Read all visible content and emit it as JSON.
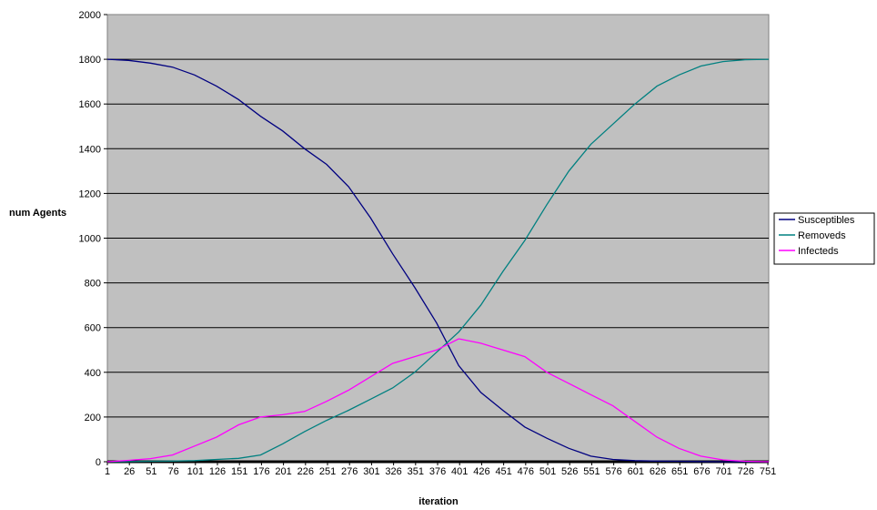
{
  "chart_data": {
    "type": "line",
    "title": "",
    "xlabel": "iteration",
    "ylabel": "num Agents",
    "ylim": [
      0,
      2000
    ],
    "xlim": [
      1,
      752
    ],
    "y_ticks": [
      0,
      200,
      400,
      600,
      800,
      1000,
      1200,
      1400,
      1600,
      1800,
      2000
    ],
    "x_tick_labels": [
      "1",
      "26",
      "51",
      "76",
      "101",
      "126",
      "151",
      "176",
      "201",
      "226",
      "251",
      "276",
      "301",
      "326",
      "351",
      "376",
      "401",
      "426",
      "451",
      "476",
      "501",
      "526",
      "551",
      "576",
      "601",
      "626",
      "651",
      "676",
      "701",
      "726",
      "751"
    ],
    "grid": true,
    "plot_background": "#c0c0c0",
    "legend_position": "right",
    "series": [
      {
        "name": "Susceptibles",
        "color": "#000080",
        "x": [
          1,
          25,
          50,
          75,
          100,
          125,
          150,
          175,
          200,
          225,
          250,
          275,
          300,
          325,
          350,
          375,
          400,
          425,
          450,
          475,
          500,
          525,
          550,
          575,
          600,
          625,
          650,
          675,
          700,
          725,
          752
        ],
        "values": [
          1800,
          1795,
          1783,
          1765,
          1730,
          1680,
          1620,
          1545,
          1480,
          1400,
          1330,
          1230,
          1090,
          930,
          780,
          620,
          430,
          310,
          230,
          155,
          105,
          60,
          25,
          10,
          5,
          3,
          2,
          1,
          0,
          0,
          0
        ]
      },
      {
        "name": "Removeds",
        "color": "#008080",
        "x": [
          1,
          25,
          50,
          75,
          100,
          125,
          150,
          175,
          200,
          225,
          250,
          275,
          300,
          325,
          350,
          375,
          400,
          425,
          450,
          475,
          500,
          525,
          550,
          575,
          600,
          625,
          650,
          675,
          700,
          725,
          752
        ],
        "values": [
          0,
          1,
          2,
          3,
          5,
          10,
          15,
          30,
          80,
          135,
          185,
          230,
          280,
          330,
          400,
          490,
          580,
          700,
          850,
          990,
          1150,
          1300,
          1420,
          1510,
          1600,
          1680,
          1730,
          1770,
          1790,
          1798,
          1800
        ]
      },
      {
        "name": "Infecteds",
        "color": "#ff00ff",
        "x": [
          1,
          25,
          50,
          75,
          100,
          125,
          150,
          175,
          200,
          225,
          250,
          275,
          300,
          325,
          350,
          375,
          400,
          425,
          450,
          475,
          500,
          525,
          550,
          575,
          600,
          625,
          650,
          675,
          700,
          725,
          752
        ],
        "values": [
          0,
          6,
          14,
          30,
          70,
          110,
          165,
          200,
          210,
          225,
          270,
          320,
          380,
          440,
          470,
          500,
          550,
          530,
          500,
          470,
          400,
          350,
          300,
          250,
          180,
          110,
          60,
          25,
          8,
          2,
          0
        ]
      }
    ]
  }
}
